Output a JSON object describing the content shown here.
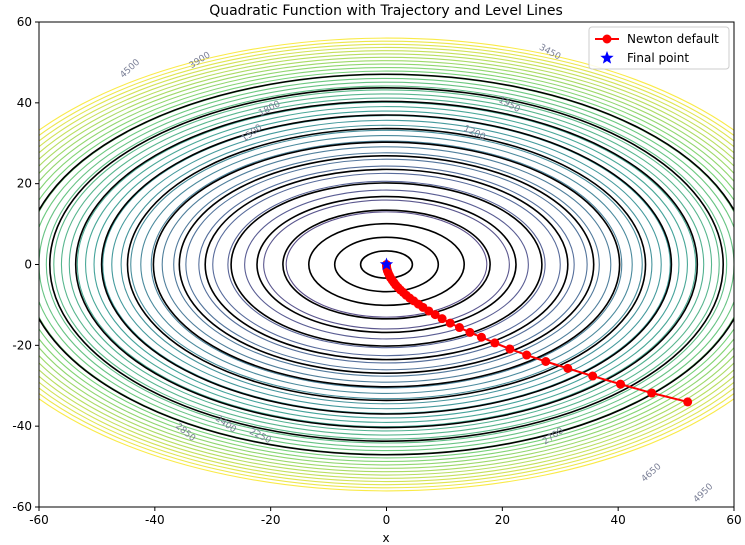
{
  "chart_data": {
    "type": "contour",
    "title": "Quadratic Function with Trajectory and Level Lines",
    "xlabel": "x",
    "ylabel": "",
    "xlim": [
      -60,
      60
    ],
    "ylim": [
      -60,
      60
    ],
    "x_ticks": [
      -60,
      -40,
      -20,
      0,
      20,
      40,
      60
    ],
    "y_ticks": [
      -60,
      -40,
      -20,
      0,
      20,
      40,
      60
    ],
    "grid": false,
    "legend_placement": "top-right",
    "function_axis_ratio": 1.33,
    "black_level_lines": [
      20,
      80,
      180,
      320,
      500,
      720,
      980,
      1280,
      1620,
      2000,
      2420,
      2880,
      3380,
      3920
    ],
    "colored_level_start": 300,
    "colored_level_step": 150,
    "colored_level_max": 5600,
    "contour_labels": [
      {
        "text": "1500",
        "x": -23,
        "y": 32
      },
      {
        "text": "1800",
        "x": -20,
        "y": 38
      },
      {
        "text": "1200",
        "x": 15,
        "y": 32
      },
      {
        "text": "1950",
        "x": 21,
        "y": 39
      },
      {
        "text": "3450",
        "x": 28,
        "y": 52
      },
      {
        "text": "3900",
        "x": -32,
        "y": 50
      },
      {
        "text": "4500",
        "x": -44,
        "y": 48
      },
      {
        "text": "2250",
        "x": -22,
        "y": -43
      },
      {
        "text": "2400",
        "x": -28,
        "y": -40
      },
      {
        "text": "2850",
        "x": -35,
        "y": -42
      },
      {
        "text": "2700",
        "x": 29,
        "y": -43
      },
      {
        "text": "4650",
        "x": 46,
        "y": -52
      },
      {
        "text": "4950",
        "x": 55,
        "y": -57
      }
    ],
    "series": [
      {
        "name": "Newton default",
        "color": "#ff0000",
        "marker": "circle",
        "points": [
          [
            52.0,
            -34.0
          ],
          [
            45.8,
            -31.8
          ],
          [
            40.4,
            -29.6
          ],
          [
            35.6,
            -27.6
          ],
          [
            31.3,
            -25.7
          ],
          [
            27.5,
            -24.0
          ],
          [
            24.2,
            -22.4
          ],
          [
            21.3,
            -20.9
          ],
          [
            18.7,
            -19.4
          ],
          [
            16.4,
            -18.0
          ],
          [
            14.4,
            -16.8
          ],
          [
            12.6,
            -15.6
          ],
          [
            11.0,
            -14.5
          ],
          [
            9.6,
            -13.4
          ],
          [
            8.4,
            -12.4
          ],
          [
            7.3,
            -11.5
          ],
          [
            6.3,
            -10.6
          ],
          [
            5.5,
            -9.8
          ],
          [
            4.7,
            -9.0
          ],
          [
            4.0,
            -8.3
          ],
          [
            3.4,
            -7.6
          ],
          [
            2.9,
            -6.9
          ],
          [
            2.4,
            -6.3
          ],
          [
            2.0,
            -5.7
          ],
          [
            1.6,
            -5.1
          ],
          [
            1.3,
            -4.5
          ],
          [
            1.0,
            -3.9
          ],
          [
            0.7,
            -3.3
          ],
          [
            0.5,
            -2.7
          ],
          [
            0.3,
            -2.1
          ],
          [
            0.15,
            -1.5
          ],
          [
            0.05,
            -0.9
          ],
          [
            0.0,
            -0.4
          ],
          [
            0.0,
            0.0
          ]
        ]
      },
      {
        "name": "Final point",
        "color": "#0000ff",
        "marker": "star",
        "points": [
          [
            0.0,
            0.0
          ]
        ]
      }
    ]
  }
}
